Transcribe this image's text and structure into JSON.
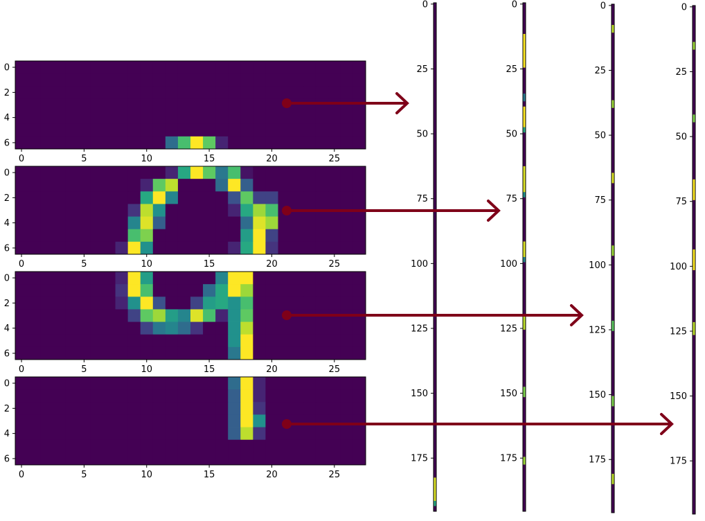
{
  "chart_data": [
    {
      "type": "heatmap",
      "title": "",
      "xticks": [
        0,
        5,
        10,
        15,
        20,
        25
      ],
      "yticks": [
        0,
        2,
        4,
        6
      ],
      "xlim": [
        -0.5,
        27.5
      ],
      "ylim": [
        -0.5,
        6.5
      ],
      "rows": [
        [
          0,
          0,
          0,
          0,
          0,
          0,
          0,
          0,
          0,
          0,
          0,
          0,
          0,
          0,
          0,
          0,
          0,
          0,
          0,
          0,
          0,
          0,
          0,
          0,
          0,
          0,
          0,
          0
        ],
        [
          0,
          0,
          0,
          0,
          0,
          0,
          0,
          0,
          0,
          0,
          0,
          0,
          0,
          0,
          0,
          0,
          0,
          0,
          0,
          0,
          0,
          0,
          0,
          0,
          0,
          0,
          0,
          0
        ],
        [
          0,
          0,
          0,
          0,
          0,
          0,
          0,
          0,
          0,
          0,
          0,
          0,
          0,
          0,
          0,
          0,
          0,
          0,
          0,
          0,
          0,
          0,
          0,
          0,
          0,
          0,
          0,
          0
        ],
        [
          0,
          0,
          0,
          0,
          0,
          0,
          0,
          0,
          0,
          0,
          0,
          0,
          0,
          0,
          0,
          0,
          0,
          0,
          0,
          0,
          0,
          0,
          0,
          0,
          0,
          0,
          0,
          0
        ],
        [
          0,
          0,
          0,
          0,
          0,
          0,
          0,
          0,
          0,
          0,
          0,
          0,
          0,
          0,
          0,
          0,
          0,
          0,
          0,
          0,
          0,
          0,
          0,
          0,
          0,
          0,
          0,
          0
        ],
        [
          0,
          0,
          0,
          0,
          0,
          0,
          0,
          0,
          0,
          0,
          0,
          0,
          0,
          0,
          0,
          0,
          0,
          0,
          0,
          0,
          0,
          0,
          0,
          0,
          0,
          0,
          0,
          0
        ],
        [
          0,
          0,
          0,
          0,
          0,
          0,
          0,
          0,
          0,
          0,
          0,
          0,
          0.35,
          0.7,
          1,
          0.75,
          0.1,
          0,
          0,
          0,
          0,
          0,
          0,
          0,
          0,
          0,
          0,
          0
        ]
      ]
    },
    {
      "type": "heatmap",
      "title": "",
      "xticks": [
        0,
        5,
        10,
        15,
        20,
        25
      ],
      "yticks": [
        0,
        2,
        4,
        6
      ],
      "xlim": [
        -0.5,
        27.5
      ],
      "ylim": [
        -0.5,
        6.5
      ],
      "rows": [
        [
          0,
          0,
          0,
          0,
          0,
          0,
          0,
          0,
          0,
          0,
          0,
          0,
          0.1,
          0.6,
          1,
          0.75,
          0.4,
          0.7,
          0.05,
          0,
          0,
          0,
          0,
          0,
          0,
          0,
          0,
          0
        ],
        [
          0,
          0,
          0,
          0,
          0,
          0,
          0,
          0,
          0,
          0,
          0.1,
          0.75,
          0.9,
          0,
          0,
          0,
          0.35,
          1,
          0.3,
          0,
          0,
          0,
          0,
          0,
          0,
          0,
          0,
          0
        ],
        [
          0,
          0,
          0,
          0,
          0,
          0,
          0,
          0,
          0,
          0,
          0.6,
          1,
          0.45,
          0,
          0,
          0,
          0,
          0.25,
          0.75,
          0.2,
          0.2,
          0,
          0,
          0,
          0,
          0,
          0,
          0
        ],
        [
          0,
          0,
          0,
          0,
          0,
          0,
          0,
          0,
          0,
          0.15,
          0.9,
          0.5,
          0,
          0,
          0,
          0,
          0,
          0.1,
          0.6,
          0.85,
          0.7,
          0,
          0,
          0,
          0,
          0,
          0,
          0
        ],
        [
          0,
          0,
          0,
          0,
          0,
          0,
          0,
          0,
          0,
          0.45,
          0.95,
          0.3,
          0,
          0,
          0,
          0,
          0,
          0,
          0.35,
          0.95,
          0.85,
          0,
          0,
          0,
          0,
          0,
          0,
          0
        ],
        [
          0,
          0,
          0,
          0,
          0,
          0,
          0,
          0,
          0,
          0.7,
          0.8,
          0,
          0,
          0,
          0,
          0,
          0,
          0,
          0.55,
          1,
          0.2,
          0,
          0,
          0,
          0,
          0,
          0,
          0
        ],
        [
          0,
          0,
          0,
          0,
          0,
          0,
          0,
          0,
          0.1,
          1,
          0.5,
          0,
          0,
          0,
          0,
          0,
          0,
          0.1,
          0.6,
          1,
          0.15,
          0,
          0,
          0,
          0,
          0,
          0,
          0
        ]
      ]
    },
    {
      "type": "heatmap",
      "title": "",
      "xticks": [
        0,
        5,
        10,
        15,
        20,
        25
      ],
      "yticks": [
        0,
        2,
        4,
        6
      ],
      "xlim": [
        -0.5,
        27.5
      ],
      "ylim": [
        -0.5,
        6.5
      ],
      "rows": [
        [
          0,
          0,
          0,
          0,
          0,
          0,
          0,
          0,
          0.1,
          1,
          0.55,
          0,
          0,
          0,
          0,
          0,
          0.45,
          1,
          1,
          0,
          0,
          0,
          0,
          0,
          0,
          0,
          0,
          0
        ],
        [
          0,
          0,
          0,
          0,
          0,
          0,
          0,
          0,
          0.15,
          1,
          0.7,
          0,
          0,
          0,
          0,
          0.35,
          0.6,
          1,
          0.85,
          0,
          0,
          0,
          0,
          0,
          0,
          0,
          0,
          0
        ],
        [
          0,
          0,
          0,
          0,
          0,
          0,
          0,
          0,
          0.1,
          0.5,
          1,
          0.25,
          0,
          0,
          0.2,
          0.55,
          0.6,
          0.5,
          0.7,
          0,
          0,
          0,
          0,
          0,
          0,
          0,
          0,
          0
        ],
        [
          0,
          0,
          0,
          0,
          0,
          0,
          0,
          0,
          0,
          0.2,
          0.75,
          0.85,
          0.55,
          0.45,
          0.95,
          0.7,
          0.1,
          0.5,
          0.75,
          0,
          0,
          0,
          0,
          0,
          0,
          0,
          0,
          0
        ],
        [
          0,
          0,
          0,
          0,
          0,
          0,
          0,
          0,
          0,
          0,
          0.2,
          0.4,
          0.45,
          0.35,
          0.15,
          0,
          0,
          0.5,
          0.9,
          0,
          0,
          0,
          0,
          0,
          0,
          0,
          0,
          0
        ],
        [
          0,
          0,
          0,
          0,
          0,
          0,
          0,
          0,
          0,
          0,
          0,
          0,
          0,
          0,
          0,
          0,
          0,
          0.5,
          1,
          0,
          0,
          0,
          0,
          0,
          0,
          0,
          0,
          0
        ],
        [
          0,
          0,
          0,
          0,
          0,
          0,
          0,
          0,
          0,
          0,
          0,
          0,
          0,
          0,
          0,
          0,
          0,
          0.4,
          1,
          0,
          0,
          0,
          0,
          0,
          0,
          0,
          0,
          0
        ]
      ]
    },
    {
      "type": "heatmap",
      "title": "",
      "xticks": [
        0,
        5,
        10,
        15,
        20,
        25
      ],
      "yticks": [
        0,
        2,
        4,
        6
      ],
      "xlim": [
        -0.5,
        27.5
      ],
      "ylim": [
        -0.5,
        6.5
      ],
      "rows": [
        [
          0,
          0,
          0,
          0,
          0,
          0,
          0,
          0,
          0,
          0,
          0,
          0,
          0,
          0,
          0,
          0,
          0,
          0.35,
          1,
          0.1,
          0,
          0,
          0,
          0,
          0,
          0,
          0,
          0
        ],
        [
          0,
          0,
          0,
          0,
          0,
          0,
          0,
          0,
          0,
          0,
          0,
          0,
          0,
          0,
          0,
          0,
          0,
          0.3,
          1,
          0.1,
          0,
          0,
          0,
          0,
          0,
          0,
          0,
          0
        ],
        [
          0,
          0,
          0,
          0,
          0,
          0,
          0,
          0,
          0,
          0,
          0,
          0,
          0,
          0,
          0,
          0,
          0,
          0.3,
          1,
          0.15,
          0,
          0,
          0,
          0,
          0,
          0,
          0,
          0
        ],
        [
          0,
          0,
          0,
          0,
          0,
          0,
          0,
          0,
          0,
          0,
          0,
          0,
          0,
          0,
          0,
          0,
          0,
          0.3,
          1,
          0.5,
          0,
          0,
          0,
          0,
          0,
          0,
          0,
          0
        ],
        [
          0,
          0,
          0,
          0,
          0,
          0,
          0,
          0,
          0,
          0,
          0,
          0,
          0,
          0,
          0,
          0,
          0,
          0.3,
          0.9,
          0.15,
          0,
          0,
          0,
          0,
          0,
          0,
          0,
          0
        ],
        [
          0,
          0,
          0,
          0,
          0,
          0,
          0,
          0,
          0,
          0,
          0,
          0,
          0,
          0,
          0,
          0,
          0,
          0,
          0,
          0,
          0,
          0,
          0,
          0,
          0,
          0,
          0,
          0
        ],
        [
          0,
          0,
          0,
          0,
          0,
          0,
          0,
          0,
          0,
          0,
          0,
          0,
          0,
          0,
          0,
          0,
          0,
          0,
          0,
          0,
          0,
          0,
          0,
          0,
          0,
          0,
          0,
          0
        ]
      ]
    },
    {
      "type": "heatmap",
      "title": "",
      "yticks": [
        0,
        25,
        50,
        75,
        100,
        125,
        150,
        175
      ],
      "ylim": [
        -0.5,
        195.5
      ],
      "segments": [
        {
          "start": 183,
          "end": 192,
          "v": 0.95
        },
        {
          "start": 192,
          "end": 194,
          "v": 0.6
        }
      ]
    },
    {
      "type": "heatmap",
      "title": "",
      "yticks": [
        0,
        25,
        50,
        75,
        100,
        125,
        150,
        175
      ],
      "ylim": [
        -0.5,
        195.5
      ],
      "segments": [
        {
          "start": 12,
          "end": 25,
          "v": 1
        },
        {
          "start": 35,
          "end": 38,
          "v": 0.4
        },
        {
          "start": 40,
          "end": 48,
          "v": 1
        },
        {
          "start": 48,
          "end": 50,
          "v": 0.6
        },
        {
          "start": 63,
          "end": 73,
          "v": 0.95
        },
        {
          "start": 73,
          "end": 75,
          "v": 0.5
        },
        {
          "start": 92,
          "end": 98,
          "v": 0.95
        },
        {
          "start": 98,
          "end": 100,
          "v": 0.45
        },
        {
          "start": 120,
          "end": 126,
          "v": 0.9
        },
        {
          "start": 148,
          "end": 152,
          "v": 0.8
        },
        {
          "start": 175,
          "end": 178,
          "v": 0.85
        }
      ]
    },
    {
      "type": "heatmap",
      "title": "",
      "yticks": [
        0,
        25,
        50,
        75,
        100,
        125,
        150,
        175
      ],
      "ylim": [
        -0.5,
        195.5
      ],
      "segments": [
        {
          "start": 8,
          "end": 11,
          "v": 0.9
        },
        {
          "start": 37,
          "end": 40,
          "v": 0.85
        },
        {
          "start": 65,
          "end": 69,
          "v": 0.95
        },
        {
          "start": 93,
          "end": 97,
          "v": 0.85
        },
        {
          "start": 122,
          "end": 126,
          "v": 0.75
        },
        {
          "start": 151,
          "end": 155,
          "v": 0.8
        },
        {
          "start": 181,
          "end": 185,
          "v": 0.9
        }
      ]
    },
    {
      "type": "heatmap",
      "title": "",
      "yticks": [
        0,
        25,
        50,
        75,
        100,
        125,
        150,
        175
      ],
      "ylim": [
        -0.5,
        195.5
      ],
      "segments": [
        {
          "start": 14,
          "end": 17,
          "v": 0.85
        },
        {
          "start": 42,
          "end": 45,
          "v": 0.8
        },
        {
          "start": 67,
          "end": 75,
          "v": 1
        },
        {
          "start": 94,
          "end": 102,
          "v": 1
        },
        {
          "start": 122,
          "end": 127,
          "v": 0.9
        }
      ]
    }
  ],
  "colors": {
    "arrow": "#7f0019"
  }
}
